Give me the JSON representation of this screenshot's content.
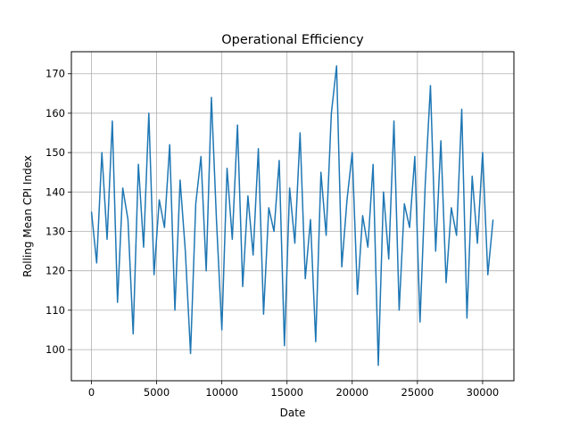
{
  "chart_data": {
    "type": "line",
    "title": "Operational Efficiency",
    "xlabel": "Date",
    "ylabel": "Rolling Mean CPI Index",
    "xlim": [
      -1540,
      32400
    ],
    "ylim": [
      92.1,
      175.6
    ],
    "x_ticks": [
      0,
      5000,
      10000,
      15000,
      20000,
      25000,
      30000
    ],
    "y_ticks": [
      100,
      110,
      120,
      130,
      140,
      150,
      160,
      170
    ],
    "x_tick_labels": [
      "0",
      "5000",
      "10000",
      "15000",
      "20000",
      "25000",
      "30000"
    ],
    "y_tick_labels": [
      "100",
      "110",
      "120",
      "130",
      "140",
      "150",
      "160",
      "170"
    ],
    "grid": true,
    "line_color": "#1f77b4",
    "series": [
      {
        "x": [
          0,
          400,
          800,
          1200,
          1600,
          2000,
          2400,
          2800,
          3200,
          3600,
          4000,
          4400,
          4800,
          5200,
          5600,
          6000,
          6400,
          6800,
          7200,
          7600,
          8000,
          8400,
          8800,
          9200,
          9600,
          10000,
          10400,
          10800,
          11200,
          11600,
          12000,
          12400,
          12800,
          13200,
          13600,
          14000,
          14400,
          14800,
          15200,
          15600,
          16000,
          16400,
          16800,
          17200,
          17600,
          18000,
          18400,
          18800,
          19200,
          19600,
          20000,
          20400,
          20800,
          21200,
          21600,
          22000,
          22400,
          22800,
          23200,
          23600,
          24000,
          24400,
          24800,
          25200,
          25600,
          26000,
          26400,
          26800,
          27200,
          27600,
          28000,
          28400,
          28800,
          29200,
          29600,
          30000,
          30400,
          30800
        ],
        "y": [
          135,
          122,
          150,
          128,
          158,
          112,
          141,
          133,
          104,
          147,
          126,
          160,
          119,
          138,
          131,
          152,
          110,
          143,
          125,
          99,
          137,
          149,
          120,
          164,
          132,
          105,
          146,
          128,
          157,
          116,
          139,
          124,
          151,
          109,
          136,
          130,
          148,
          101,
          141,
          127,
          155,
          118,
          133,
          102,
          145,
          129,
          160,
          172,
          121,
          138,
          150,
          114,
          134,
          126,
          147,
          96,
          140,
          123,
          158,
          110,
          137,
          131,
          149,
          107,
          142,
          167,
          125,
          153,
          117,
          136,
          129,
          161,
          108,
          144,
          127,
          150,
          119,
          133
        ]
      }
    ]
  }
}
